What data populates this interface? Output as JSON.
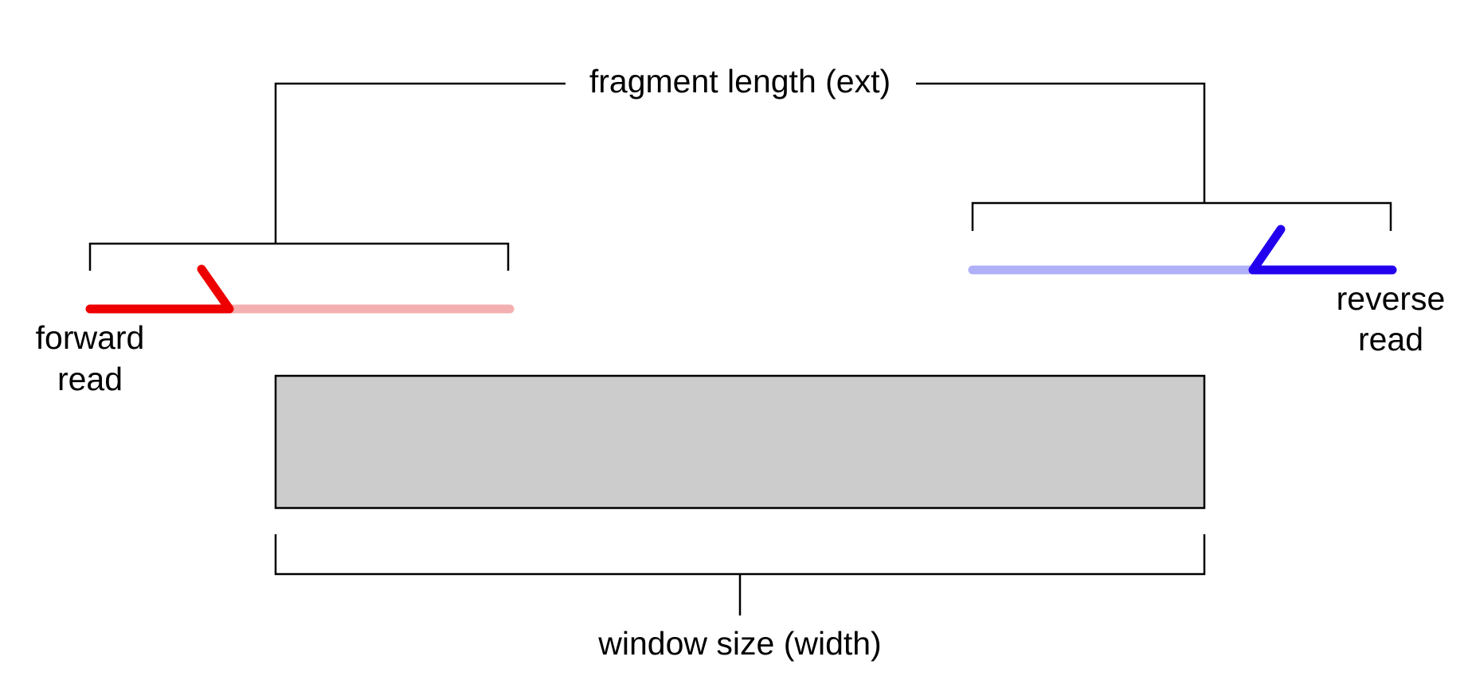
{
  "labels": {
    "fragment_length": "fragment length (ext)",
    "forward_read_line1": "forward",
    "forward_read_line2": "read",
    "reverse_read_line1": "reverse",
    "reverse_read_line2": "read",
    "window_size": "window size (width)"
  },
  "colors": {
    "forward_read": "#ee0000",
    "forward_read_extension": "#f4b0b0",
    "reverse_read": "#2200ee",
    "reverse_read_extension": "#b0b0f8",
    "window_fill": "#cccccc",
    "window_stroke": "#000000",
    "bracket": "#000000"
  }
}
